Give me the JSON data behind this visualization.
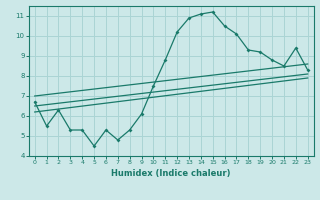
{
  "xlabel": "Humidex (Indice chaleur)",
  "ylabel": "",
  "bg_color": "#cce8e8",
  "line_color": "#1a7a6a",
  "grid_color": "#aad4d4",
  "xlim": [
    -0.5,
    23.5
  ],
  "ylim": [
    4,
    11.5
  ],
  "xticks": [
    0,
    1,
    2,
    3,
    4,
    5,
    6,
    7,
    8,
    9,
    10,
    11,
    12,
    13,
    14,
    15,
    16,
    17,
    18,
    19,
    20,
    21,
    22,
    23
  ],
  "yticks": [
    4,
    5,
    6,
    7,
    8,
    9,
    10,
    11
  ],
  "main_x": [
    0,
    1,
    2,
    3,
    4,
    5,
    6,
    7,
    8,
    9,
    10,
    11,
    12,
    13,
    14,
    15,
    16,
    17,
    18,
    19,
    20,
    21,
    22,
    23
  ],
  "main_y": [
    6.7,
    5.5,
    6.3,
    5.3,
    5.3,
    4.5,
    5.3,
    4.8,
    5.3,
    6.1,
    7.5,
    8.8,
    10.2,
    10.9,
    11.1,
    11.2,
    10.5,
    10.1,
    9.3,
    9.2,
    8.8,
    8.5,
    9.4,
    8.3
  ],
  "trend1_x": [
    0,
    23
  ],
  "trend1_y": [
    6.5,
    8.1
  ],
  "trend2_x": [
    0,
    23
  ],
  "trend2_y": [
    7.0,
    8.6
  ],
  "trend3_x": [
    0,
    23
  ],
  "trend3_y": [
    6.2,
    7.9
  ]
}
